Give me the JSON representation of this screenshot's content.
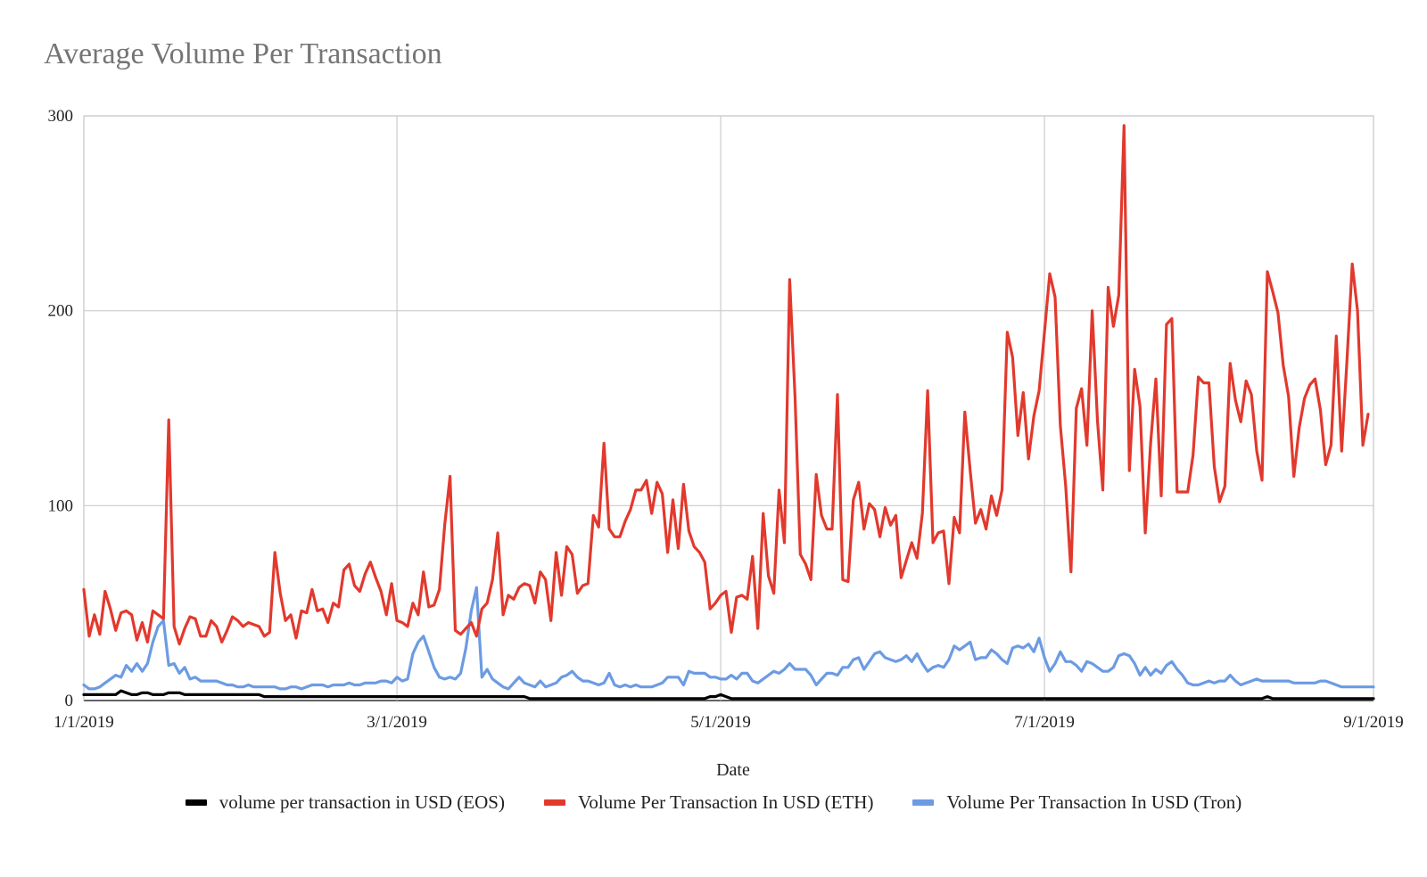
{
  "chart_data": {
    "type": "line",
    "title": "Average Volume Per Transaction",
    "xlabel": "Date",
    "ylabel": "",
    "ylim": [
      0,
      300
    ],
    "yticks": [
      0,
      100,
      200,
      300
    ],
    "yticks_labels": [
      "0",
      "100",
      "200",
      "300"
    ],
    "x_range_days": [
      0,
      243
    ],
    "xticks": [
      {
        "day": 0,
        "label": "1/1/2019"
      },
      {
        "day": 59,
        "label": "3/1/2019"
      },
      {
        "day": 120,
        "label": "5/1/2019"
      },
      {
        "day": 181,
        "label": "7/1/2019"
      },
      {
        "day": 243,
        "label": "9/1/2019"
      }
    ],
    "grid": true,
    "legend_position": "bottom",
    "x_note": "series values are daily, starting 1/1/2019 (day index 0)",
    "series": [
      {
        "name": "volume per transaction in USD (EOS)",
        "color": "#000000",
        "values": [
          3,
          3,
          3,
          3,
          3,
          3,
          3,
          5,
          4,
          3,
          3,
          4,
          4,
          3,
          3,
          3,
          4,
          4,
          4,
          3,
          3,
          3,
          3,
          3,
          3,
          3,
          3,
          3,
          3,
          3,
          3,
          3,
          3,
          3,
          2,
          2,
          2,
          2,
          2,
          2,
          2,
          2,
          2,
          2,
          2,
          2,
          2,
          2,
          2,
          2,
          2,
          2,
          2,
          2,
          2,
          2,
          2,
          2,
          2,
          2,
          2,
          2,
          2,
          2,
          2,
          2,
          2,
          2,
          2,
          2,
          2,
          2,
          2,
          2,
          2,
          2,
          2,
          2,
          2,
          2,
          2,
          2,
          2,
          2,
          1,
          1,
          1,
          1,
          1,
          1,
          1,
          1,
          1,
          1,
          1,
          1,
          1,
          1,
          1,
          1,
          1,
          1,
          1,
          1,
          1,
          1,
          1,
          1,
          1,
          1,
          1,
          1,
          1,
          1,
          1,
          1,
          1,
          1,
          2,
          2,
          3,
          2,
          1,
          1,
          1,
          1,
          1,
          1,
          1,
          1,
          1,
          1,
          1,
          1,
          1,
          1,
          1,
          1,
          1,
          1,
          1,
          1,
          1,
          1,
          1,
          1,
          1,
          1,
          1,
          1,
          1,
          1,
          1,
          1,
          1,
          1,
          1,
          1,
          1,
          1,
          1,
          1,
          1,
          1,
          1,
          1,
          1,
          1,
          1,
          1,
          1,
          1,
          1,
          1,
          1,
          1,
          1,
          1,
          1,
          1,
          1,
          1,
          1,
          1,
          1,
          1,
          1,
          1,
          1,
          1,
          1,
          1,
          1,
          1,
          1,
          1,
          1,
          1,
          1,
          1,
          1,
          1,
          1,
          1,
          1,
          1,
          1,
          1,
          1,
          1,
          1,
          1,
          1,
          1,
          1,
          1,
          1,
          1,
          1,
          1,
          1,
          1,
          1,
          2,
          1,
          1,
          1,
          1,
          1,
          1,
          1,
          1,
          1,
          1,
          1,
          1,
          1,
          1,
          1,
          1,
          1,
          1,
          1,
          1
        ]
      },
      {
        "name": "Volume Per Transaction In USD (ETH)",
        "color": "#E2392D",
        "values": [
          57,
          33,
          44,
          34,
          56,
          47,
          36,
          45,
          46,
          44,
          31,
          40,
          30,
          46,
          44,
          42,
          144,
          38,
          29,
          37,
          43,
          42,
          33,
          33,
          41,
          38,
          30,
          36,
          43,
          41,
          38,
          40,
          39,
          38,
          33,
          35,
          76,
          55,
          41,
          44,
          32,
          46,
          45,
          57,
          46,
          47,
          40,
          50,
          48,
          67,
          70,
          59,
          56,
          65,
          71,
          63,
          56,
          44,
          60,
          41,
          40,
          38,
          50,
          44,
          66,
          48,
          49,
          57,
          90,
          115,
          36,
          34,
          37,
          40,
          33,
          47,
          50,
          62,
          86,
          44,
          54,
          52,
          58,
          60,
          59,
          50,
          66,
          62,
          41,
          76,
          54,
          79,
          75,
          55,
          59,
          60,
          95,
          89,
          132,
          88,
          84,
          84,
          92,
          98,
          108,
          108,
          113,
          96,
          112,
          106,
          76,
          103,
          78,
          111,
          87,
          79,
          76,
          71,
          47,
          50,
          54,
          56,
          35,
          53,
          54,
          52,
          74,
          37,
          96,
          64,
          55,
          108,
          81,
          216,
          156,
          75,
          70,
          62,
          116,
          95,
          88,
          88,
          157,
          62,
          61,
          103,
          112,
          88,
          101,
          98,
          84,
          99,
          90,
          95,
          63,
          72,
          81,
          73,
          96,
          159,
          81,
          86,
          87,
          60,
          94,
          86,
          148,
          118,
          91,
          98,
          88,
          105,
          95,
          108,
          189,
          176,
          136,
          158,
          124,
          146,
          159,
          189,
          219,
          207,
          141,
          110,
          66,
          150,
          160,
          131,
          200,
          143,
          108,
          212,
          192,
          208,
          295,
          118,
          170,
          151,
          86,
          132,
          165,
          105,
          193,
          196,
          107,
          107,
          107,
          126,
          166,
          163,
          163,
          120,
          102,
          110,
          173,
          154,
          143,
          164,
          157,
          128,
          113,
          220,
          210,
          199,
          172,
          156,
          115,
          140,
          155,
          162,
          165,
          149,
          121,
          131,
          187,
          128,
          174,
          224,
          200,
          131,
          147
        ]
      },
      {
        "name": "Volume Per Transaction In USD (Tron)",
        "color": "#6C9BE3",
        "values": [
          8,
          6,
          6,
          7,
          9,
          11,
          13,
          12,
          18,
          15,
          19,
          15,
          19,
          30,
          38,
          41,
          18,
          19,
          14,
          17,
          11,
          12,
          10,
          10,
          10,
          10,
          9,
          8,
          8,
          7,
          7,
          8,
          7,
          7,
          7,
          7,
          7,
          6,
          6,
          7,
          7,
          6,
          7,
          8,
          8,
          8,
          7,
          8,
          8,
          8,
          9,
          8,
          8,
          9,
          9,
          9,
          10,
          10,
          9,
          12,
          10,
          11,
          24,
          30,
          33,
          25,
          17,
          12,
          11,
          12,
          11,
          14,
          27,
          46,
          58,
          12,
          16,
          11,
          9,
          7,
          6,
          9,
          12,
          9,
          8,
          7,
          10,
          7,
          8,
          9,
          12,
          13,
          15,
          12,
          10,
          10,
          9,
          8,
          9,
          14,
          8,
          7,
          8,
          7,
          8,
          7,
          7,
          7,
          8,
          9,
          12,
          12,
          12,
          8,
          15,
          14,
          14,
          14,
          12,
          12,
          11,
          11,
          13,
          11,
          14,
          14,
          10,
          9,
          11,
          13,
          15,
          14,
          16,
          19,
          16,
          16,
          16,
          13,
          8,
          11,
          14,
          14,
          13,
          17,
          17,
          21,
          22,
          16,
          20,
          24,
          25,
          22,
          21,
          20,
          21,
          23,
          20,
          24,
          19,
          15,
          17,
          18,
          17,
          21,
          28,
          26,
          28,
          30,
          21,
          22,
          22,
          26,
          24,
          21,
          19,
          27,
          28,
          27,
          29,
          25,
          32,
          22,
          15,
          19,
          25,
          20,
          20,
          18,
          15,
          20,
          19,
          17,
          15,
          15,
          17,
          23,
          24,
          23,
          19,
          13,
          17,
          13,
          16,
          14,
          18,
          20,
          16,
          13,
          9,
          8,
          8,
          9,
          10,
          9,
          10,
          10,
          13,
          10,
          8,
          9,
          10,
          11,
          10,
          10,
          10,
          10,
          10,
          10,
          9,
          9,
          9,
          9,
          9,
          10,
          10,
          9,
          8,
          7,
          7,
          7,
          7,
          7,
          7,
          7
        ]
      }
    ]
  }
}
